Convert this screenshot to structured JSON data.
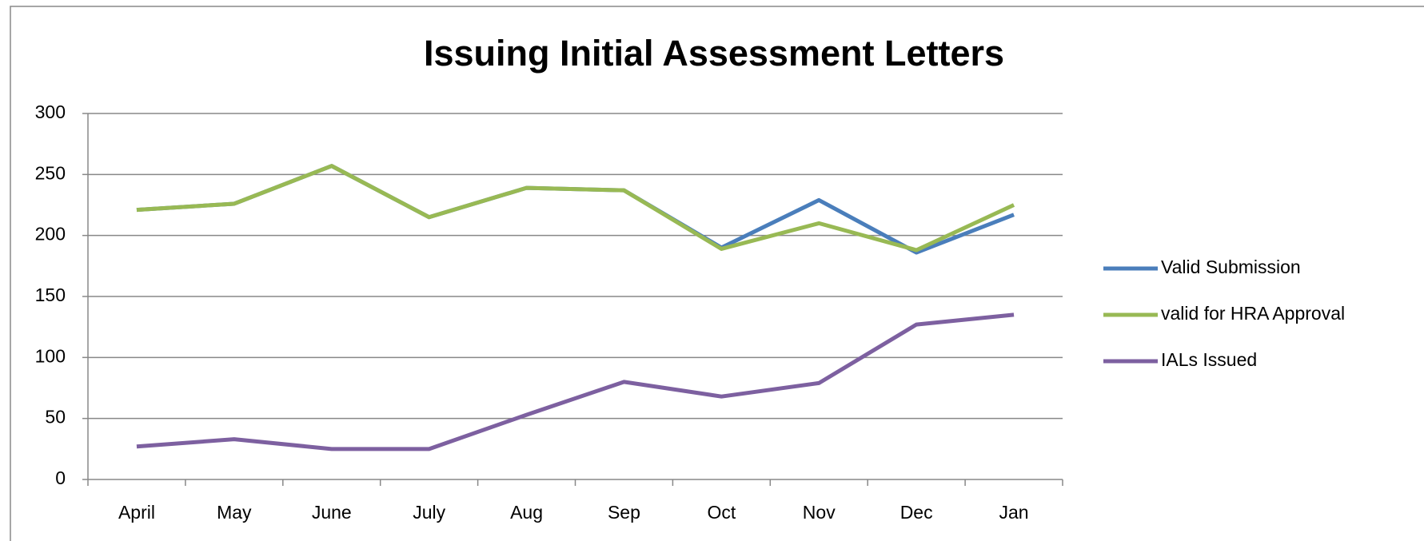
{
  "chart_data": {
    "type": "line",
    "title": "Issuing Initial Assessment Letters",
    "categories": [
      "April",
      "May",
      "June",
      "July",
      "Aug",
      "Sep",
      "Oct",
      "Nov",
      "Dec",
      "Jan"
    ],
    "series": [
      {
        "name": "Valid Submission",
        "color": "#4a7ebb",
        "values": [
          221,
          226,
          257,
          215,
          239,
          237,
          190,
          229,
          186,
          217
        ]
      },
      {
        "name": "valid for HRA Approval",
        "color": "#98b954",
        "values": [
          221,
          226,
          257,
          215,
          239,
          237,
          189,
          210,
          188,
          225
        ]
      },
      {
        "name": "IALs Issued",
        "color": "#7d60a0",
        "values": [
          27,
          33,
          25,
          25,
          53,
          80,
          68,
          79,
          127,
          135
        ]
      }
    ],
    "ylim": [
      0,
      300
    ],
    "yticks": [
      0,
      50,
      100,
      150,
      200,
      250,
      300
    ],
    "grid": true,
    "legend": "right"
  }
}
